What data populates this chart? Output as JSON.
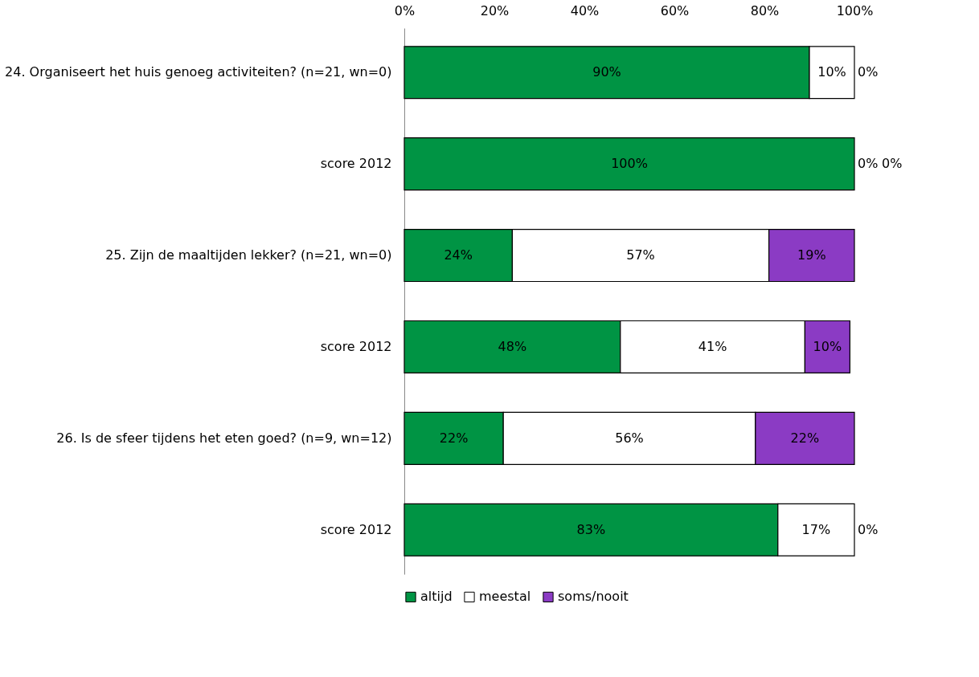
{
  "chart_data": {
    "type": "bar",
    "orientation": "horizontal",
    "stacked": true,
    "categories": [
      "24. Organiseert het huis genoeg activiteiten? (n=21, wn=0)",
      "score 2012",
      "25. Zijn de maaltijden lekker? (n=21, wn=0)",
      "score 2012",
      "26. Is de sfeer tijdens het eten goed? (n=9, wn=12)",
      "score 2012"
    ],
    "series": [
      {
        "name": "altijd",
        "color": "#009444",
        "values": [
          90,
          100,
          24,
          48,
          22,
          83
        ],
        "value_labels": [
          "90%",
          "100%",
          "24%",
          "48%",
          "22%",
          "83%"
        ]
      },
      {
        "name": "meestal",
        "color": "#ffffff",
        "values": [
          10,
          0,
          57,
          41,
          56,
          17
        ],
        "value_labels": [
          "10%",
          "0%",
          "57%",
          "41%",
          "56%",
          "17%"
        ]
      },
      {
        "name": "soms/nooit",
        "color": "#8b3bc4",
        "values": [
          0,
          0,
          19,
          10,
          22,
          0
        ],
        "value_labels": [
          "0%",
          "0%",
          "19%",
          "10%",
          "22%",
          "0%"
        ]
      }
    ],
    "xlim": [
      0,
      100
    ],
    "xticks": [
      {
        "value": 0,
        "label": "0%"
      },
      {
        "value": 20,
        "label": "20%"
      },
      {
        "value": 40,
        "label": "40%"
      },
      {
        "value": 60,
        "label": "60%"
      },
      {
        "value": 80,
        "label": "80%"
      },
      {
        "value": 100,
        "label": "100%"
      }
    ],
    "legend": "bottom",
    "grid": false
  }
}
